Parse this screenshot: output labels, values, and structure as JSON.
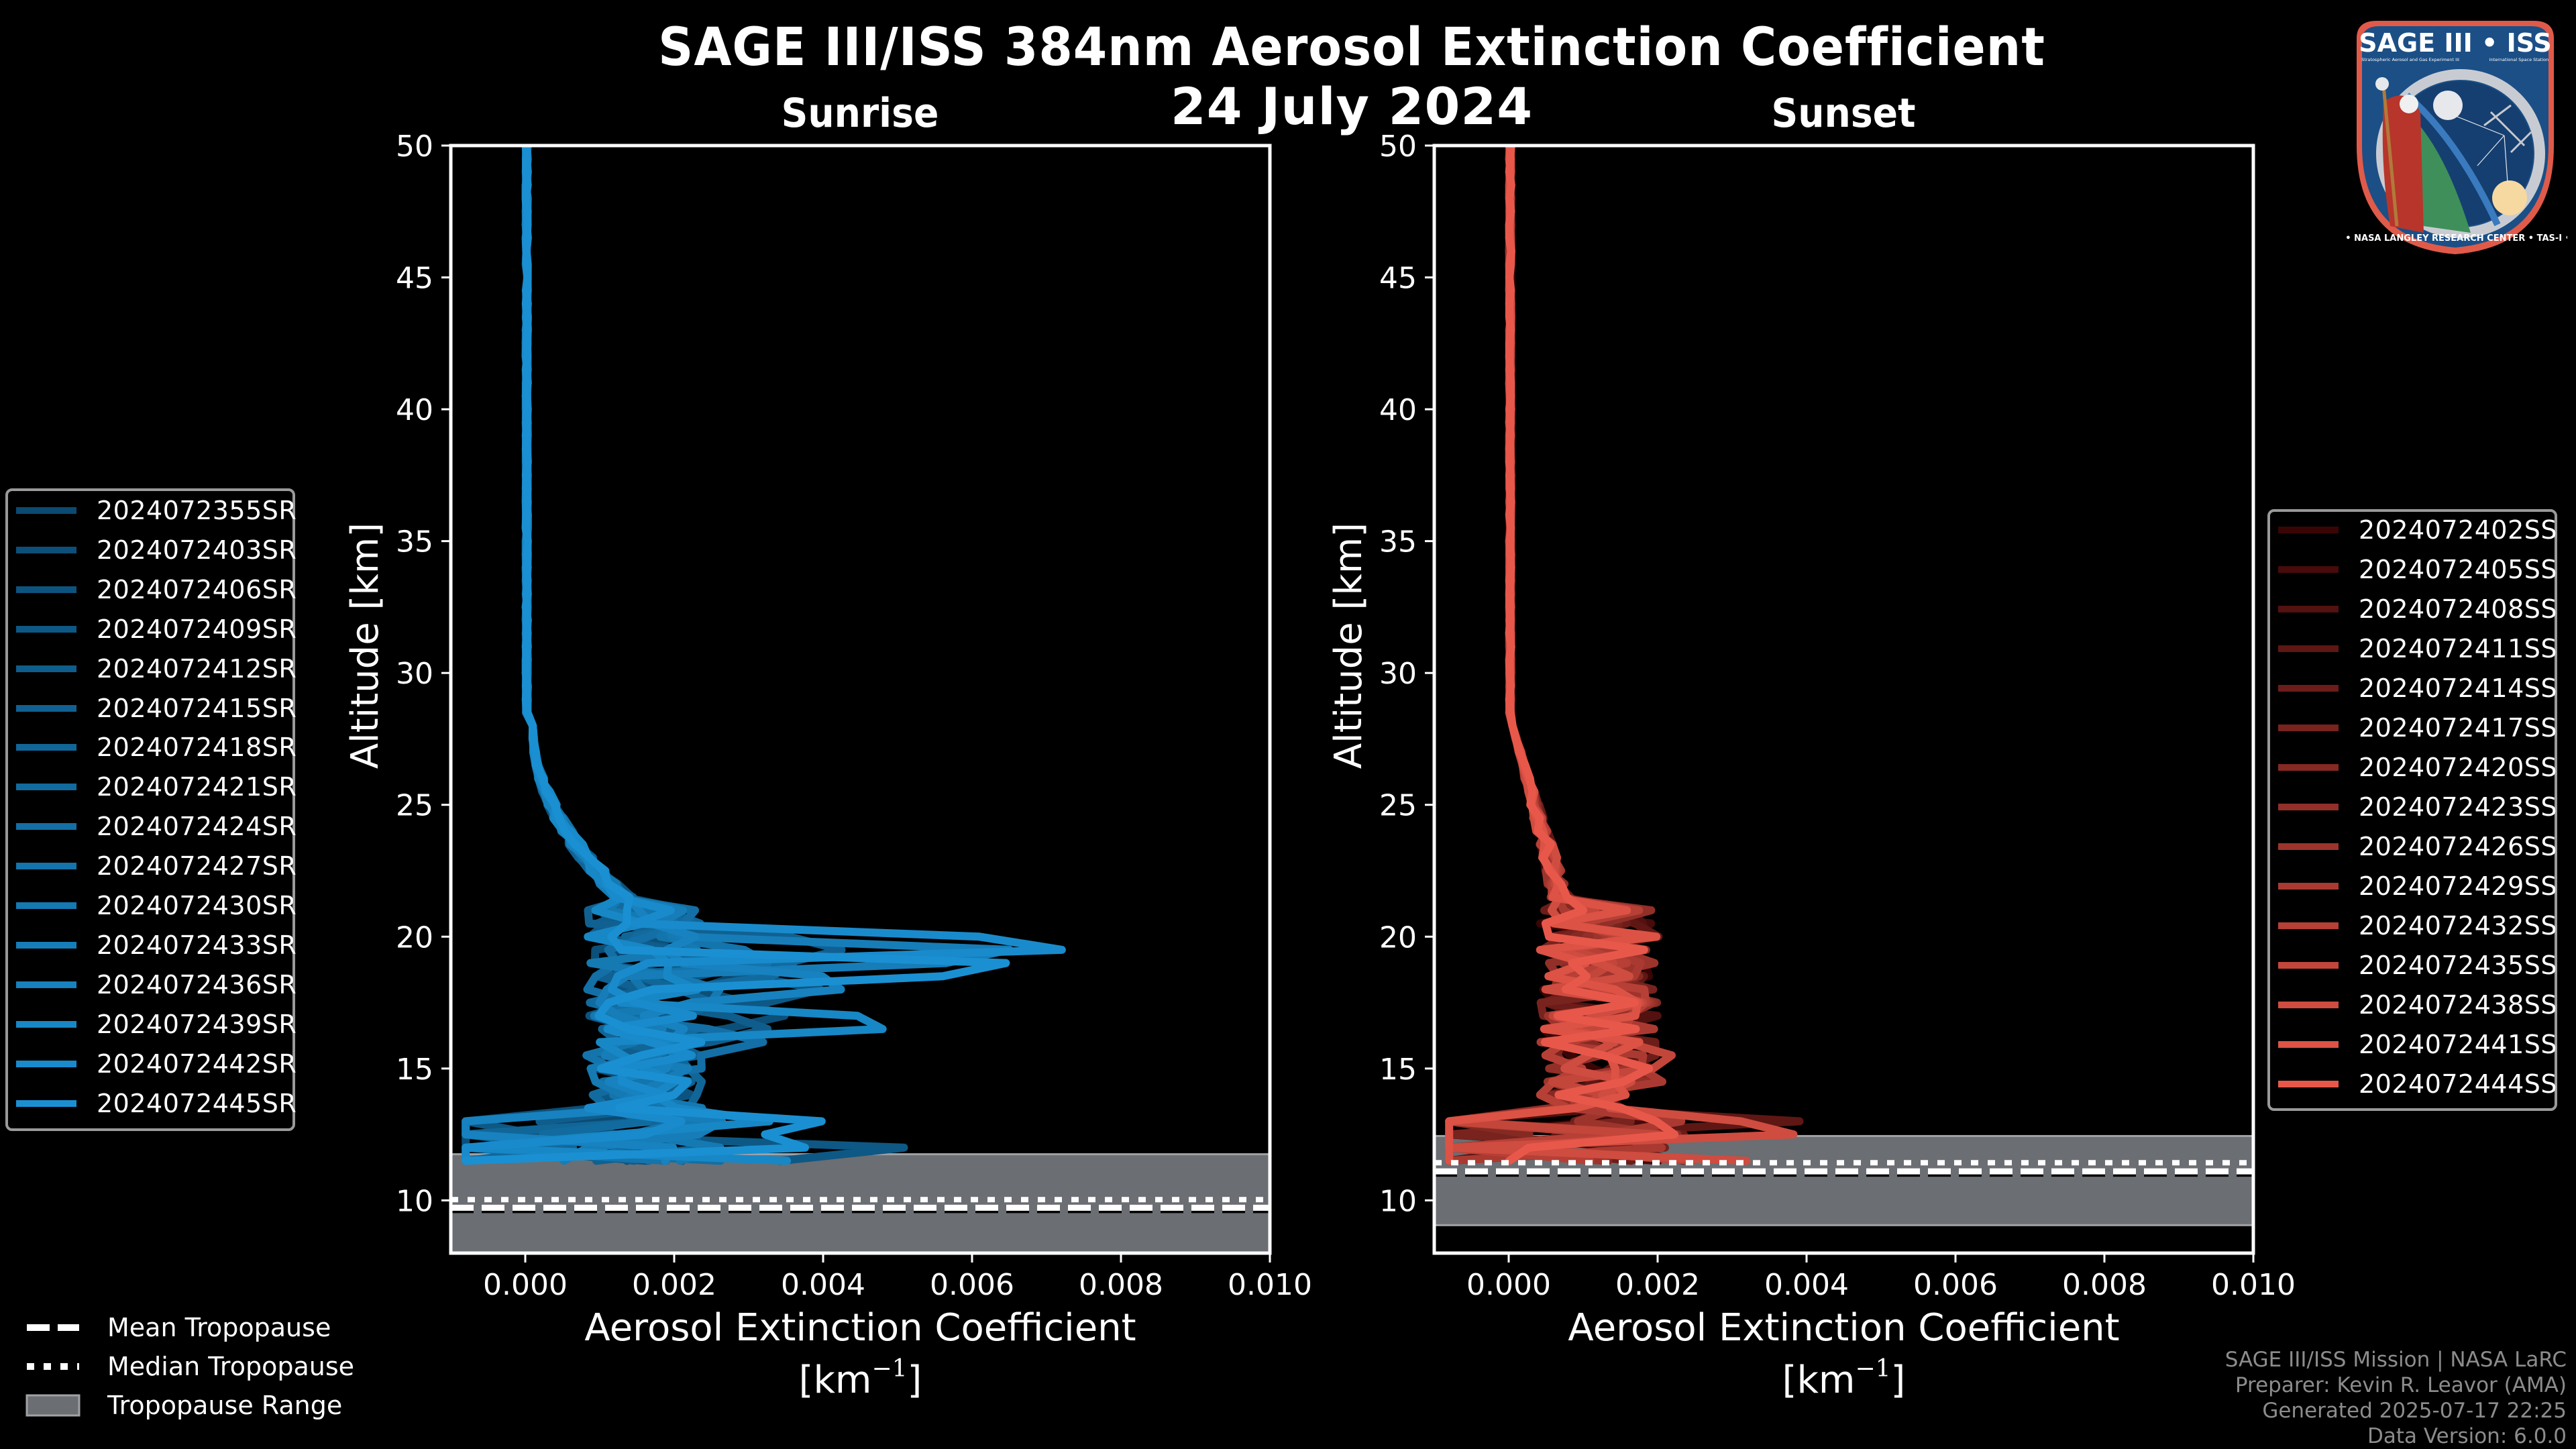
{
  "header": {
    "title": "SAGE III/ISS 384nm Aerosol Extinction Coefficient",
    "date": "24 July 2024"
  },
  "credits": {
    "line1": "SAGE III/ISS Mission | NASA LaRC",
    "line2": "Preparer: Kevin R. Leavor (AMA)",
    "line3": "Generated 2025-07-17 22:25",
    "line4": "Data Version: 6.0.0"
  },
  "logo": {
    "top_text": "SAGE III • ISS",
    "subtitle_left": "Stratospheric Aerosol and Gas Experiment III",
    "subtitle_right": "International Space Station",
    "ring_text": "BALL • NASA LANGLEY RESEARCH CENTER • TAS-I • ESA",
    "colors": {
      "border": "#e05a4a",
      "field": "#1b4f86",
      "ring": "#c8ccd2",
      "robe": "#b8352b",
      "earth": "#3f8f5a",
      "sun": "#f6d9a0"
    }
  },
  "tropopause_legend": {
    "mean_label": "Mean Tropopause",
    "median_label": "Median Tropopause",
    "range_label": "Tropopause Range",
    "range_color": "#6b6e73"
  },
  "chart_data": [
    {
      "type": "line",
      "title": "Sunrise",
      "xlabel": "Aerosol Extinction Coefficient",
      "xlabel_units": "[km",
      "xlabel_units_exp": "−1",
      "xlabel_units_end": "]",
      "ylabel": "Altitude [km]",
      "xlim": [
        -0.001,
        0.01
      ],
      "ylim": [
        8,
        50
      ],
      "xticks": [
        0.0,
        0.002,
        0.004,
        0.006,
        0.008,
        0.01
      ],
      "xtick_labels": [
        "0.000",
        "0.002",
        "0.004",
        "0.006",
        "0.008",
        "0.010"
      ],
      "yticks": [
        10,
        15,
        20,
        25,
        30,
        35,
        40,
        45,
        50
      ],
      "ytick_labels": [
        "10",
        "15",
        "20",
        "25",
        "30",
        "35",
        "40",
        "45",
        "50"
      ],
      "grid": false,
      "legend_position": "left-outside",
      "tropopause": {
        "range": [
          7.5,
          11.75
        ],
        "mean": 9.72,
        "median": 9.8
      },
      "color_start": "#0b4a72",
      "color_end": "#1a90d2",
      "series": [
        {
          "name": "2024072355SR",
          "peak_alt": 18.5,
          "peak_val": 0.0028,
          "low_val": 0.0022,
          "seed": 1
        },
        {
          "name": "2024072403SR",
          "peak_alt": 17.0,
          "peak_val": 0.0036,
          "low_val": 0.003,
          "seed": 2
        },
        {
          "name": "2024072406SR",
          "peak_alt": 19.0,
          "peak_val": 0.0031,
          "low_val": 0.0025,
          "seed": 3
        },
        {
          "name": "2024072409SR",
          "peak_alt": 18.0,
          "peak_val": 0.004,
          "low_val": 0.0051,
          "seed": 4
        },
        {
          "name": "2024072412SR",
          "peak_alt": 16.5,
          "peak_val": 0.0033,
          "low_val": 0.002,
          "seed": 5
        },
        {
          "name": "2024072415SR",
          "peak_alt": 19.5,
          "peak_val": 0.0044,
          "low_val": 0.0028,
          "seed": 6
        },
        {
          "name": "2024072418SR",
          "peak_alt": 17.5,
          "peak_val": 0.0026,
          "low_val": 0.0024,
          "seed": 7
        },
        {
          "name": "2024072421SR",
          "peak_alt": 18.8,
          "peak_val": 0.0038,
          "low_val": 0.0018,
          "seed": 8
        },
        {
          "name": "2024072424SR",
          "peak_alt": 16.0,
          "peak_val": 0.003,
          "low_val": 0.0032,
          "seed": 9
        },
        {
          "name": "2024072427SR",
          "peak_alt": 19.2,
          "peak_val": 0.0035,
          "low_val": 0.0026,
          "seed": 10
        },
        {
          "name": "2024072430SR",
          "peak_alt": 17.8,
          "peak_val": 0.0029,
          "low_val": 0.0034,
          "seed": 11
        },
        {
          "name": "2024072433SR",
          "peak_alt": 19.4,
          "peak_val": 0.0066,
          "low_val": 0.003,
          "seed": 12
        },
        {
          "name": "2024072436SR",
          "peak_alt": 18.2,
          "peak_val": 0.0046,
          "low_val": 0.0021,
          "seed": 13
        },
        {
          "name": "2024072439SR",
          "peak_alt": 16.7,
          "peak_val": 0.005,
          "low_val": 0.0038,
          "seed": 14
        },
        {
          "name": "2024072442SR",
          "peak_alt": 19.6,
          "peak_val": 0.0073,
          "low_val": 0.0029,
          "seed": 15
        },
        {
          "name": "2024072445SR",
          "peak_alt": 18.9,
          "peak_val": 0.0068,
          "low_val": 0.0047,
          "seed": 16
        }
      ]
    },
    {
      "type": "line",
      "title": "Sunset",
      "xlabel": "Aerosol Extinction Coefficient",
      "xlabel_units": "[km",
      "xlabel_units_exp": "−1",
      "xlabel_units_end": "]",
      "ylabel": "Altitude [km]",
      "xlim": [
        -0.001,
        0.01
      ],
      "ylim": [
        8,
        50
      ],
      "xticks": [
        0.0,
        0.002,
        0.004,
        0.006,
        0.008,
        0.01
      ],
      "xtick_labels": [
        "0.000",
        "0.002",
        "0.004",
        "0.006",
        "0.008",
        "0.010"
      ],
      "yticks": [
        10,
        15,
        20,
        25,
        30,
        35,
        40,
        45,
        50
      ],
      "ytick_labels": [
        "10",
        "15",
        "20",
        "25",
        "30",
        "35",
        "40",
        "45",
        "50"
      ],
      "grid": false,
      "legend_position": "right-outside",
      "tropopause": {
        "range": [
          9.06,
          12.44
        ],
        "mean": 11.1,
        "median": 11.2
      },
      "color_start": "#3a0505",
      "color_end": "#e8584a",
      "series": [
        {
          "name": "2024072402SS",
          "peak_alt": 14.5,
          "peak_val": 0.0015,
          "low_val": 0.0019,
          "seed": 21
        },
        {
          "name": "2024072405SS",
          "peak_alt": 15.0,
          "peak_val": 0.0017,
          "low_val": 0.0023,
          "seed": 22
        },
        {
          "name": "2024072408SS",
          "peak_alt": 14.0,
          "peak_val": 0.0014,
          "low_val": 0.0029,
          "seed": 23
        },
        {
          "name": "2024072411SS",
          "peak_alt": 15.5,
          "peak_val": 0.0018,
          "low_val": 0.0042,
          "seed": 24
        },
        {
          "name": "2024072414SS",
          "peak_alt": 14.8,
          "peak_val": 0.0016,
          "low_val": 0.0024,
          "seed": 25
        },
        {
          "name": "2024072417SS",
          "peak_alt": 13.8,
          "peak_val": 0.002,
          "low_val": 0.0026,
          "seed": 26
        },
        {
          "name": "2024072420SS",
          "peak_alt": 15.2,
          "peak_val": 0.0017,
          "low_val": 0.0028,
          "seed": 27
        },
        {
          "name": "2024072423SS",
          "peak_alt": 14.2,
          "peak_val": 0.0019,
          "low_val": 0.0031,
          "seed": 28
        },
        {
          "name": "2024072426SS",
          "peak_alt": 15.8,
          "peak_val": 0.0015,
          "low_val": 0.0021,
          "seed": 29
        },
        {
          "name": "2024072429SS",
          "peak_alt": 14.6,
          "peak_val": 0.0021,
          "low_val": 0.003,
          "seed": 30
        },
        {
          "name": "2024072432SS",
          "peak_alt": 13.5,
          "peak_val": 0.0018,
          "low_val": 0.0024,
          "seed": 31
        },
        {
          "name": "2024072435SS",
          "peak_alt": 15.4,
          "peak_val": 0.0022,
          "low_val": 0.0025,
          "seed": 32
        },
        {
          "name": "2024072438SS",
          "peak_alt": 14.3,
          "peak_val": 0.002,
          "low_val": 0.0039,
          "seed": 33
        },
        {
          "name": "2024072441SS",
          "peak_alt": 13.9,
          "peak_val": 0.0017,
          "low_val": 0.0026,
          "seed": 34
        },
        {
          "name": "2024072444SS",
          "peak_alt": 14.9,
          "peak_val": 0.0019,
          "low_val": 0.0023,
          "seed": 35
        }
      ]
    }
  ]
}
